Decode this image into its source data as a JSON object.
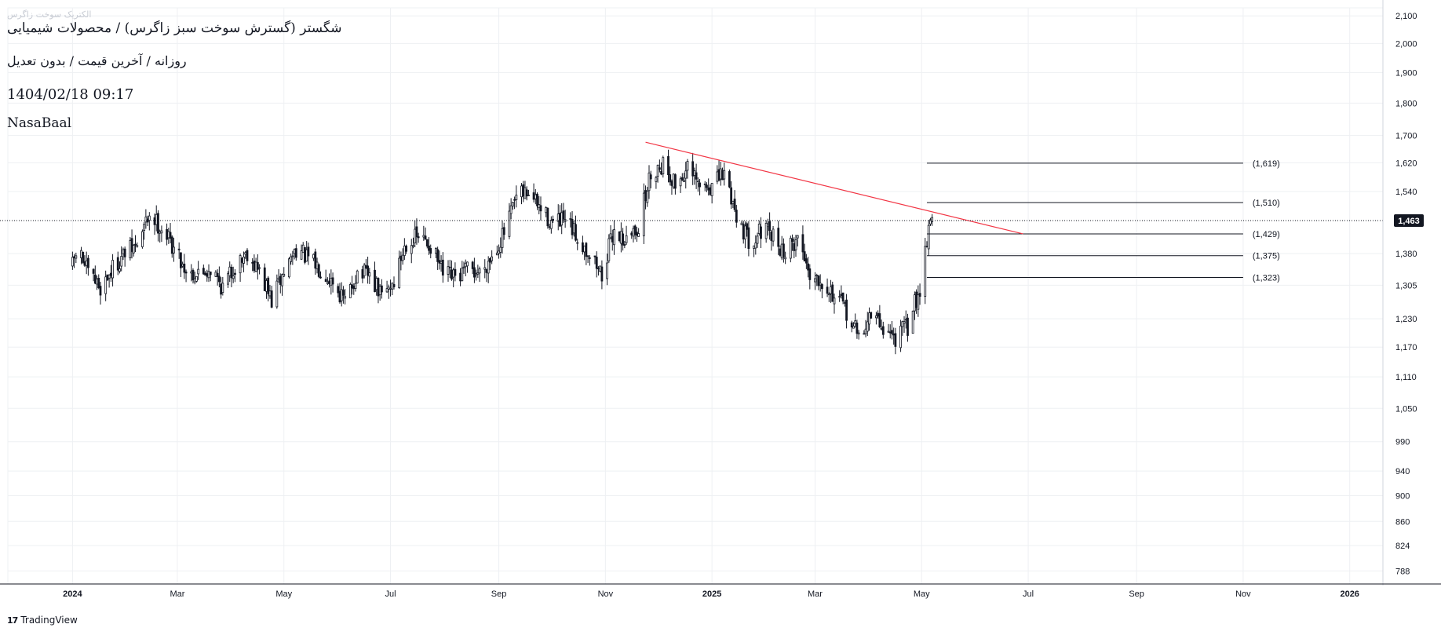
{
  "header": {
    "ghost_text": "الکتریک‌ سوخت زاگرس",
    "title": "شگستر (گسترش سوخت سبز زاگرس) / محصولات شیمیایی",
    "subtitle": "روزانه / آخرین قیمت / بدون تعدیل",
    "datetime": "1404/02/18 09:17",
    "author": "NasaBaal"
  },
  "footer": {
    "brand": "TradingView",
    "logo_glyph": "17"
  },
  "colors": {
    "grid": "#eef0f3",
    "candle": "#131722",
    "trendline": "#f23645",
    "level": "#131722",
    "last_price_bg": "#131722"
  },
  "chart_data": {
    "type": "candlestick",
    "title": "",
    "xlabel": "",
    "ylabel": "",
    "y_scale": "log",
    "ylim": [
      770,
      2130
    ],
    "xlim": [
      "2023-11-25",
      "2026-01-20"
    ],
    "y_ticks": [
      2100,
      2000,
      1900,
      1800,
      1700,
      1620,
      1540,
      1380,
      1305,
      1230,
      1170,
      1110,
      1050,
      990,
      940,
      900,
      860,
      824,
      788
    ],
    "x_ticks": [
      {
        "label": "2024",
        "date": "2024-01-01"
      },
      {
        "label": "Mar",
        "date": "2024-03-01"
      },
      {
        "label": "May",
        "date": "2024-05-01"
      },
      {
        "label": "Jul",
        "date": "2024-07-01"
      },
      {
        "label": "Sep",
        "date": "2024-09-01"
      },
      {
        "label": "Nov",
        "date": "2024-11-01"
      },
      {
        "label": "2025",
        "date": "2025-01-01"
      },
      {
        "label": "Mar",
        "date": "2025-03-01"
      },
      {
        "label": "May",
        "date": "2025-05-01"
      },
      {
        "label": "Jul",
        "date": "2025-07-01"
      },
      {
        "label": "Sep",
        "date": "2025-09-01"
      },
      {
        "label": "Nov",
        "date": "2025-11-01"
      },
      {
        "label": "2026",
        "date": "2026-01-01"
      }
    ],
    "last_price": {
      "value": 1463,
      "label": "1,463"
    },
    "close_path": [
      [
        "2024-01-01",
        1350
      ],
      [
        "2024-01-04",
        1395
      ],
      [
        "2024-01-10",
        1330
      ],
      [
        "2024-01-17",
        1300
      ],
      [
        "2024-01-24",
        1345
      ],
      [
        "2024-01-31",
        1380
      ],
      [
        "2024-02-07",
        1400
      ],
      [
        "2024-02-14",
        1480
      ],
      [
        "2024-02-21",
        1445
      ],
      [
        "2024-02-28",
        1395
      ],
      [
        "2024-03-06",
        1340
      ],
      [
        "2024-03-13",
        1330
      ],
      [
        "2024-03-20",
        1345
      ],
      [
        "2024-03-27",
        1300
      ],
      [
        "2024-04-03",
        1350
      ],
      [
        "2024-04-10",
        1385
      ],
      [
        "2024-04-17",
        1335
      ],
      [
        "2024-04-24",
        1270
      ],
      [
        "2024-05-01",
        1335
      ],
      [
        "2024-05-08",
        1395
      ],
      [
        "2024-05-15",
        1365
      ],
      [
        "2024-05-22",
        1345
      ],
      [
        "2024-05-29",
        1315
      ],
      [
        "2024-06-05",
        1265
      ],
      [
        "2024-06-12",
        1335
      ],
      [
        "2024-06-19",
        1325
      ],
      [
        "2024-06-26",
        1280
      ],
      [
        "2024-07-03",
        1315
      ],
      [
        "2024-07-10",
        1410
      ],
      [
        "2024-07-17",
        1420
      ],
      [
        "2024-07-24",
        1400
      ],
      [
        "2024-07-31",
        1330
      ],
      [
        "2024-08-07",
        1320
      ],
      [
        "2024-08-14",
        1340
      ],
      [
        "2024-08-21",
        1335
      ],
      [
        "2024-08-28",
        1375
      ],
      [
        "2024-09-04",
        1430
      ],
      [
        "2024-09-11",
        1520
      ],
      [
        "2024-09-18",
        1540
      ],
      [
        "2024-09-25",
        1490
      ],
      [
        "2024-10-02",
        1455
      ],
      [
        "2024-10-09",
        1460
      ],
      [
        "2024-10-16",
        1420
      ],
      [
        "2024-10-23",
        1380
      ],
      [
        "2024-10-30",
        1330
      ],
      [
        "2024-11-06",
        1440
      ],
      [
        "2024-11-13",
        1410
      ],
      [
        "2024-11-20",
        1450
      ],
      [
        "2024-11-27",
        1590
      ],
      [
        "2024-12-04",
        1620
      ],
      [
        "2024-12-11",
        1560
      ],
      [
        "2024-12-18",
        1600
      ],
      [
        "2024-12-25",
        1550
      ],
      [
        "2025-01-01",
        1555
      ],
      [
        "2025-01-08",
        1590
      ],
      [
        "2025-01-15",
        1480
      ],
      [
        "2025-01-22",
        1410
      ],
      [
        "2025-01-29",
        1440
      ],
      [
        "2025-02-05",
        1420
      ],
      [
        "2025-02-12",
        1380
      ],
      [
        "2025-02-19",
        1420
      ],
      [
        "2025-02-26",
        1335
      ],
      [
        "2025-03-05",
        1320
      ],
      [
        "2025-03-12",
        1280
      ],
      [
        "2025-03-19",
        1245
      ],
      [
        "2025-03-26",
        1190
      ],
      [
        "2025-04-02",
        1240
      ],
      [
        "2025-04-09",
        1210
      ],
      [
        "2025-04-16",
        1190
      ],
      [
        "2025-04-23",
        1215
      ],
      [
        "2025-04-30",
        1300
      ],
      [
        "2025-05-04",
        1420
      ],
      [
        "2025-05-06",
        1475
      ],
      [
        "2025-05-08",
        1463
      ]
    ],
    "trendline": {
      "from": {
        "date": "2024-11-24",
        "value": 1680
      },
      "to": {
        "date": "2025-06-28",
        "value": 1429
      }
    },
    "levels": [
      {
        "value": 1619,
        "label": "(1,619)",
        "from": "2025-05-04",
        "to": "2025-11-01"
      },
      {
        "value": 1510,
        "label": "(1,510)",
        "from": "2025-05-04",
        "to": "2025-11-01"
      },
      {
        "value": 1429,
        "label": "(1,429)",
        "from": "2025-05-04",
        "to": "2025-11-01"
      },
      {
        "value": 1375,
        "label": "(1,375)",
        "from": "2025-05-04",
        "to": "2025-11-01"
      },
      {
        "value": 1323,
        "label": "(1,323)",
        "from": "2025-05-04",
        "to": "2025-11-01"
      }
    ]
  }
}
